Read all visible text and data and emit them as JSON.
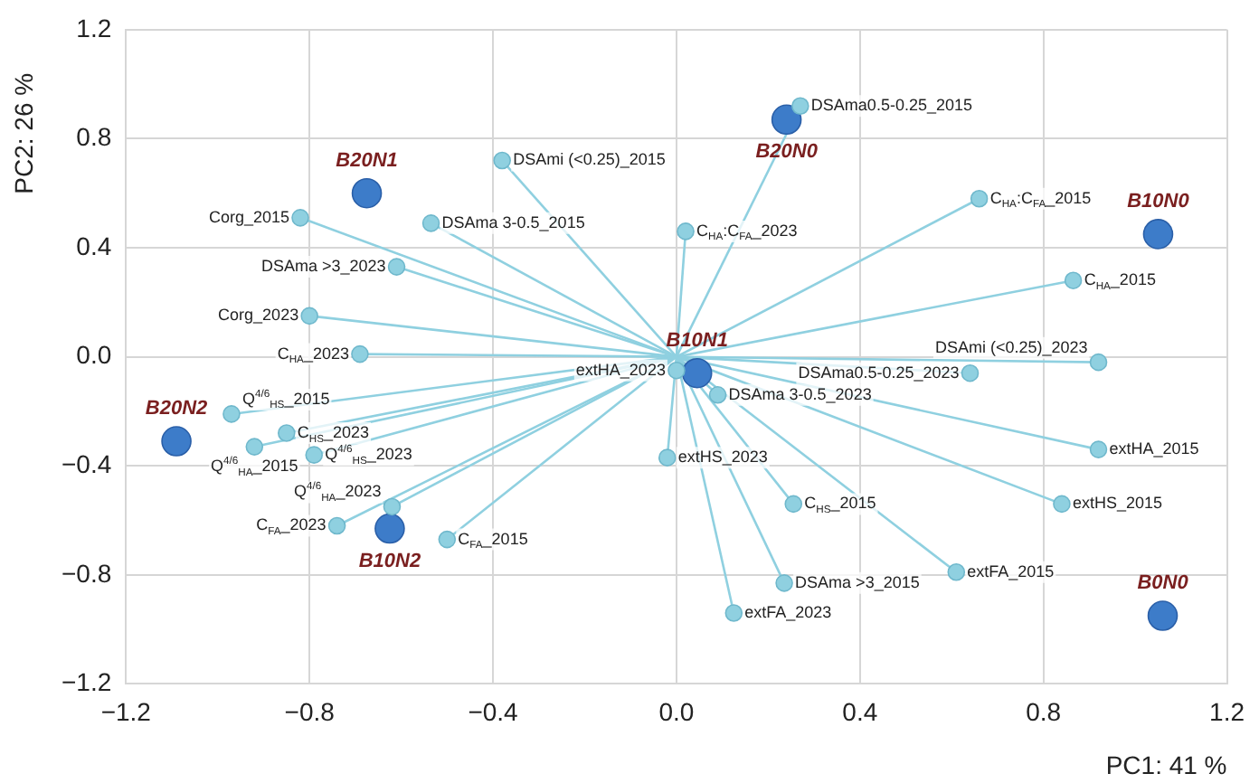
{
  "chart_data": {
    "type": "scatter",
    "xlabel": "PC1: 41 %",
    "ylabel": "PC2: 26 %",
    "xlim": [
      -1.2,
      1.2
    ],
    "ylim": [
      -1.2,
      1.2
    ],
    "xticks": [
      {
        "value": -1.2,
        "label": "−1.2"
      },
      {
        "value": -0.8,
        "label": "−0.8"
      },
      {
        "value": -0.4,
        "label": "−0.4"
      },
      {
        "value": 0,
        "label": "0.0"
      },
      0.4,
      0.8,
      1.2
    ],
    "yticks": [
      {
        "value": -1.2,
        "label": "−1.2"
      },
      {
        "value": -0.8,
        "label": "−0.8"
      },
      {
        "value": -0.4,
        "label": "−0.4"
      },
      {
        "value": 0,
        "label": "0.0"
      },
      0.4,
      0.8,
      1.2
    ],
    "grid": true,
    "marker": "circle",
    "legend": false,
    "series": [
      {
        "color": "#8fd0e0",
        "line_style": "solid",
        "x": [
          -0.38,
          -0.82,
          -0.535,
          -0.61,
          -0.8,
          -0.69,
          0.27,
          0.66,
          0.02,
          0.865,
          0.92,
          0.64,
          0.09,
          0.0,
          -0.02,
          0.92,
          0.84,
          0.255,
          0.235,
          0.125,
          0.61,
          -0.97,
          -0.85,
          -0.92,
          -0.79,
          -0.62,
          -0.74,
          -0.5
        ],
        "values": [
          0.72,
          0.51,
          0.49,
          0.33,
          0.15,
          0.01,
          0.92,
          0.58,
          0.46,
          0.28,
          -0.02,
          -0.06,
          -0.14,
          -0.05,
          -0.37,
          -0.34,
          -0.54,
          -0.54,
          -0.83,
          -0.94,
          -0.79,
          -0.21,
          -0.28,
          -0.33,
          -0.36,
          -0.55,
          -0.62,
          -0.67
        ]
      },
      {
        "color": "#3d7cc9",
        "x": [
          -0.675,
          0.24,
          1.05,
          0.045,
          -1.09,
          -0.625,
          1.06
        ],
        "values": [
          0.6,
          0.87,
          0.45,
          -0.06,
          -0.31,
          -0.63,
          -0.95
        ]
      }
    ],
    "annotations": [
      {
        "text": "DSAmi (<0.25)_2015",
        "x": -0.38,
        "y": 0.72
      },
      {
        "text": "Corg_2015",
        "x": -0.82,
        "y": 0.51
      },
      {
        "text": "DSAma 3-0.5_2015",
        "x": -0.535,
        "y": 0.49
      },
      {
        "text": "DSAma >3_2023",
        "x": -0.61,
        "y": 0.33
      },
      {
        "text": "Corg_2023",
        "x": -0.8,
        "y": 0.15
      },
      {
        "text": "C$_{HA}$_2023",
        "x": -0.69,
        "y": 0.01
      },
      {
        "text": "DSAma0.5-0.25_2015",
        "x": 0.27,
        "y": 0.92
      },
      {
        "text": "C$_{HA}$:C$_{FA}$_2015",
        "x": 0.66,
        "y": 0.58
      },
      {
        "text": "C$_{HA}$:C$_{FA}$_2023",
        "x": 0.02,
        "y": 0.46
      },
      {
        "text": "C$_{HA}$_2015",
        "x": 0.865,
        "y": 0.28
      },
      {
        "text": "DSAmi (<0.25)_2023",
        "x": 0.92,
        "y": -0.02
      },
      {
        "text": "DSAma0.5-0.25_2023",
        "x": 0.64,
        "y": -0.06
      },
      {
        "text": "DSAma 3-0.5_2023",
        "x": 0.09,
        "y": -0.14
      },
      {
        "text": "extHA_2023",
        "x": 0.0,
        "y": -0.05
      },
      {
        "text": "extHS_2023",
        "x": -0.02,
        "y": -0.37
      },
      {
        "text": "extHA_2015",
        "x": 0.92,
        "y": -0.34
      },
      {
        "text": "extHS_2015",
        "x": 0.84,
        "y": -0.54
      },
      {
        "text": "C$_{HS}$_2015",
        "x": 0.255,
        "y": -0.54
      },
      {
        "text": "DSAma >3_2015",
        "x": 0.235,
        "y": -0.83
      },
      {
        "text": "extFA_2023",
        "x": 0.125,
        "y": -0.94
      },
      {
        "text": "extFA_2015",
        "x": 0.61,
        "y": -0.79
      },
      {
        "text": "Q$^{4/6}$$_{HS}$_2015",
        "x": -0.97,
        "y": -0.21
      },
      {
        "text": "C$_{HS}$_2023",
        "x": -0.85,
        "y": -0.28
      },
      {
        "text": "Q$^{4/6}$$_{HA}$_2015",
        "x": -0.92,
        "y": -0.33
      },
      {
        "text": "Q$^{4/6}$$_{HS}$_2023",
        "x": -0.79,
        "y": -0.36
      },
      {
        "text": "Q$^{4/6}$$_{HA}$_2023",
        "x": -0.62,
        "y": -0.55
      },
      {
        "text": "C$_{FA}$_2023",
        "x": -0.74,
        "y": -0.62
      },
      {
        "text": "C$_{FA}$_2015",
        "x": -0.5,
        "y": -0.67
      },
      {
        "text": "B20N1",
        "x": -0.675,
        "y": 0.6
      },
      {
        "text": "B20N0",
        "x": 0.24,
        "y": 0.87
      },
      {
        "text": "B10N0",
        "x": 1.05,
        "y": 0.45
      },
      {
        "text": "B10N1",
        "x": 0.045,
        "y": -0.06
      },
      {
        "text": "B20N2",
        "x": -1.09,
        "y": -0.31
      },
      {
        "text": "B10N2",
        "x": -0.625,
        "y": -0.63
      },
      {
        "text": "B0N0",
        "x": 1.06,
        "y": -0.95
      }
    ]
  }
}
